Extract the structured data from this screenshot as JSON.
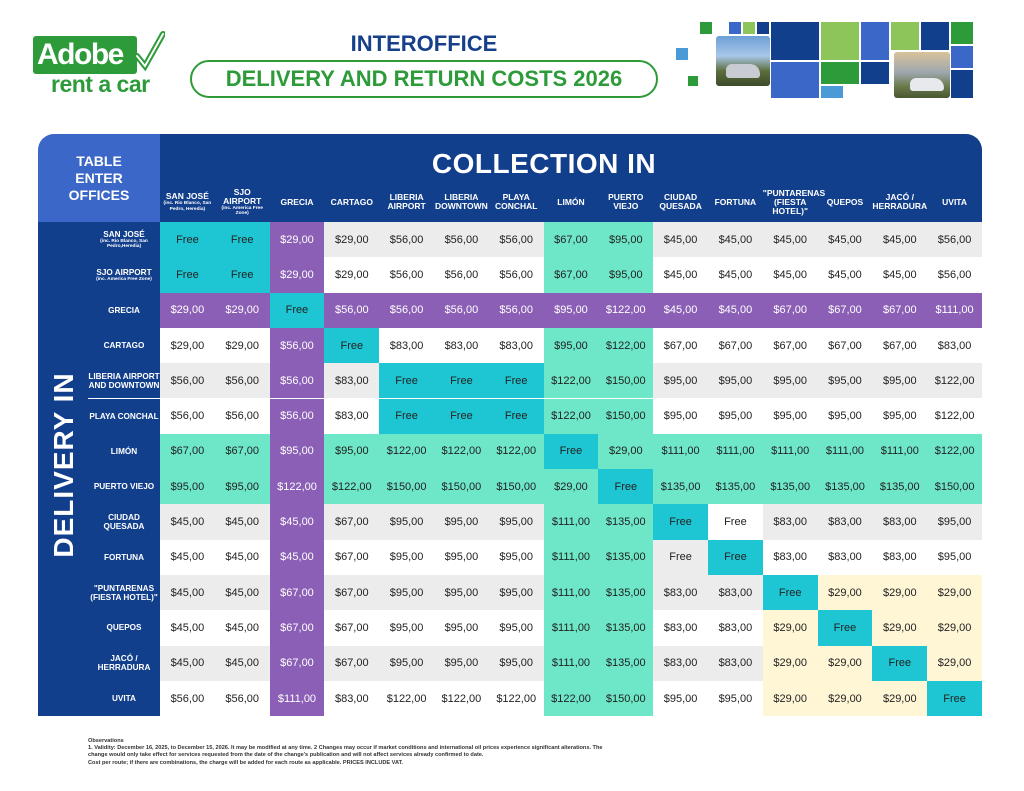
{
  "logo": {
    "name": "Adobe",
    "sub": "rent a car",
    "brand_color": "#2e9b3a"
  },
  "header": {
    "line1": "INTEROFFICE",
    "line2": "DELIVERY AND RETURN COSTS 2026"
  },
  "table": {
    "corner": [
      "TABLE",
      "ENTER",
      "OFFICES"
    ],
    "collection_title": "COLLECTION IN",
    "delivery_title": "DELIVERY IN",
    "columns": [
      {
        "label": "SAN JOSÉ",
        "sub": "(inc. Rio Blanco, San Pedro, Heredia)"
      },
      {
        "label": "SJO AIRPORT",
        "sub": "(inc. America Free Zone)"
      },
      {
        "label": "GRECIA",
        "sub": ""
      },
      {
        "label": "CARTAGO",
        "sub": ""
      },
      {
        "label": "LIBERIA AIRPORT",
        "sub": ""
      },
      {
        "label": "LIBERIA DOWNTOWN",
        "sub": ""
      },
      {
        "label": "PLAYA CONCHAL",
        "sub": ""
      },
      {
        "label": "LIMÓN",
        "sub": ""
      },
      {
        "label": "PUERTO VIEJO",
        "sub": ""
      },
      {
        "label": "CIUDAD QUESADA",
        "sub": ""
      },
      {
        "label": "FORTUNA",
        "sub": ""
      },
      {
        "label": "\"PUNTARENAS (FIESTA HOTEL)\"",
        "sub": ""
      },
      {
        "label": "QUEPOS",
        "sub": ""
      },
      {
        "label": "JACÓ / HERRADURA",
        "sub": ""
      },
      {
        "label": "UVITA",
        "sub": ""
      }
    ],
    "rows": [
      {
        "label": "SAN JOSÉ",
        "sub": "(inc. Rio Blanco, San Pedro,Heredia)",
        "values": [
          "Free",
          "Free",
          "$29,00",
          "$29,00",
          "$56,00",
          "$56,00",
          "$56,00",
          "$67,00",
          "$95,00",
          "$45,00",
          "$45,00",
          "$45,00",
          "$45,00",
          "$45,00",
          "$56,00"
        ]
      },
      {
        "label": "SJO AIRPORT",
        "sub": "(inc. America Free Zone)",
        "values": [
          "Free",
          "Free",
          "$29,00",
          "$29,00",
          "$56,00",
          "$56,00",
          "$56,00",
          "$67,00",
          "$95,00",
          "$45,00",
          "$45,00",
          "$45,00",
          "$45,00",
          "$45,00",
          "$56,00"
        ]
      },
      {
        "label": "GRECIA",
        "sub": "",
        "values": [
          "$29,00",
          "$29,00",
          "Free",
          "$56,00",
          "$56,00",
          "$56,00",
          "$56,00",
          "$95,00",
          "$122,00",
          "$45,00",
          "$45,00",
          "$67,00",
          "$67,00",
          "$67,00",
          "$111,00"
        ]
      },
      {
        "label": "CARTAGO",
        "sub": "",
        "values": [
          "$29,00",
          "$29,00",
          "$56,00",
          "Free",
          "$83,00",
          "$83,00",
          "$83,00",
          "$95,00",
          "$122,00",
          "$67,00",
          "$67,00",
          "$67,00",
          "$67,00",
          "$67,00",
          "$83,00"
        ]
      },
      {
        "label": "LIBERIA AIRPORT AND DOWNTOWN",
        "sub": "",
        "values": [
          "$56,00",
          "$56,00",
          "$56,00",
          "$83,00",
          "Free",
          "Free",
          "Free",
          "$122,00",
          "$150,00",
          "$95,00",
          "$95,00",
          "$95,00",
          "$95,00",
          "$95,00",
          "$122,00"
        ]
      },
      {
        "label": "PLAYA CONCHAL",
        "sub": "",
        "values": [
          "$56,00",
          "$56,00",
          "$56,00",
          "$83,00",
          "Free",
          "Free",
          "Free",
          "$122,00",
          "$150,00",
          "$95,00",
          "$95,00",
          "$95,00",
          "$95,00",
          "$95,00",
          "$122,00"
        ]
      },
      {
        "label": "LIMÓN",
        "sub": "",
        "values": [
          "$67,00",
          "$67,00",
          "$95,00",
          "$95,00",
          "$122,00",
          "$122,00",
          "$122,00",
          "Free",
          "$29,00",
          "$111,00",
          "$111,00",
          "$111,00",
          "$111,00",
          "$111,00",
          "$122,00"
        ]
      },
      {
        "label": "PUERTO VIEJO",
        "sub": "",
        "values": [
          "$95,00",
          "$95,00",
          "$122,00",
          "$122,00",
          "$150,00",
          "$150,00",
          "$150,00",
          "$29,00",
          "Free",
          "$135,00",
          "$135,00",
          "$135,00",
          "$135,00",
          "$135,00",
          "$150,00"
        ]
      },
      {
        "label": "CIUDAD QUESADA",
        "sub": "",
        "values": [
          "$45,00",
          "$45,00",
          "$45,00",
          "$67,00",
          "$95,00",
          "$95,00",
          "$95,00",
          "$111,00",
          "$135,00",
          "Free",
          "Free",
          "$83,00",
          "$83,00",
          "$83,00",
          "$95,00"
        ]
      },
      {
        "label": "FORTUNA",
        "sub": "",
        "values": [
          "$45,00",
          "$45,00",
          "$45,00",
          "$67,00",
          "$95,00",
          "$95,00",
          "$95,00",
          "$111,00",
          "$135,00",
          "Free",
          "Free",
          "$83,00",
          "$83,00",
          "$83,00",
          "$95,00"
        ]
      },
      {
        "label": "\"PUNTARENAS (FIESTA HOTEL)\"",
        "sub": "",
        "values": [
          "$45,00",
          "$45,00",
          "$67,00",
          "$67,00",
          "$95,00",
          "$95,00",
          "$95,00",
          "$111,00",
          "$135,00",
          "$83,00",
          "$83,00",
          "Free",
          "$29,00",
          "$29,00",
          "$29,00"
        ]
      },
      {
        "label": "QUEPOS",
        "sub": "",
        "values": [
          "$45,00",
          "$45,00",
          "$67,00",
          "$67,00",
          "$95,00",
          "$95,00",
          "$95,00",
          "$111,00",
          "$135,00",
          "$83,00",
          "$83,00",
          "$29,00",
          "Free",
          "$29,00",
          "$29,00"
        ]
      },
      {
        "label": "JACÓ / HERRADURA",
        "sub": "",
        "values": [
          "$45,00",
          "$45,00",
          "$67,00",
          "$67,00",
          "$95,00",
          "$95,00",
          "$95,00",
          "$111,00",
          "$135,00",
          "$83,00",
          "$83,00",
          "$29,00",
          "$29,00",
          "Free",
          "$29,00"
        ]
      },
      {
        "label": "UVITA",
        "sub": "",
        "values": [
          "$56,00",
          "$56,00",
          "$111,00",
          "$83,00",
          "$122,00",
          "$122,00",
          "$122,00",
          "$122,00",
          "$150,00",
          "$95,00",
          "$95,00",
          "$29,00",
          "$29,00",
          "$29,00",
          "Free"
        ]
      }
    ],
    "colors": {
      "header_blue": "#123f8c",
      "corner_blue": "#3a67c8",
      "free_teal": "#1ec6d3",
      "purple": "#8b5fb5",
      "mint": "#6ee7c8",
      "cream": "#fff6d6",
      "grey": "#ececec",
      "white": "#ffffff"
    }
  },
  "observations": [
    "Observations",
    "1. Validity: December 16, 2025, to December 15, 2026. It may be modified at any time. 2 Changes may occur if market conditions and international oil prices experience significant alterations. The",
    "change would only take effect for services requested from the date of the change's publication and will not affect services already confirmed to date.",
    "Cost per route; if there are combinations, the charge will be added for each route as applicable. PRICES INCLUDE VAT."
  ]
}
